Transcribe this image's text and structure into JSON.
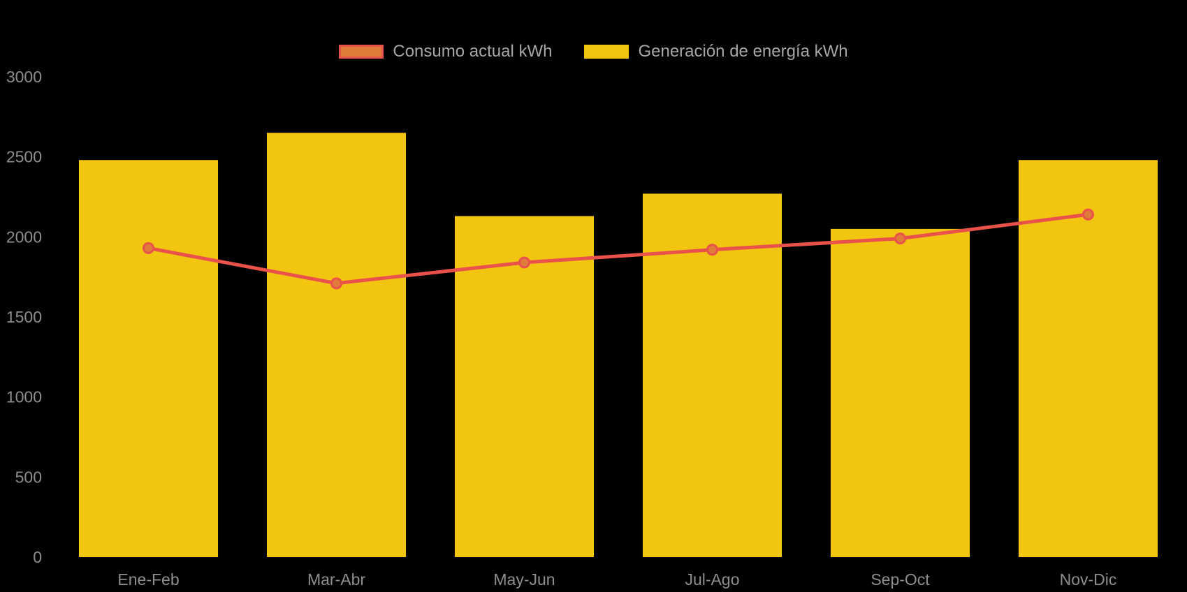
{
  "chart_data": {
    "type": "bar",
    "title": "",
    "categories": [
      "Ene-Feb",
      "Mar-Abr",
      "May-Jun",
      "Jul-Ago",
      "Sep-Oct",
      "Nov-Dic"
    ],
    "series": [
      {
        "name": "Consumo actual kWh",
        "type": "line",
        "values": [
          1930,
          1710,
          1840,
          1920,
          1990,
          2140
        ],
        "color": "#E8524A",
        "marker_color": "#E07B39"
      },
      {
        "name": "Generación de energía kWh",
        "type": "bar",
        "values": [
          2480,
          2650,
          2130,
          2270,
          2050,
          2480
        ],
        "color": "#F2C511"
      }
    ],
    "xlabel": "",
    "ylabel": "",
    "ylim": [
      0,
      3000
    ],
    "y_ticks": [
      0,
      500,
      1000,
      1500,
      2000,
      2500,
      3000
    ],
    "grid": false,
    "legend_position": "top-center",
    "background": "#000000",
    "axis_text_color": "#8E8E8E",
    "legend_text_color": "#A6A6A6"
  }
}
